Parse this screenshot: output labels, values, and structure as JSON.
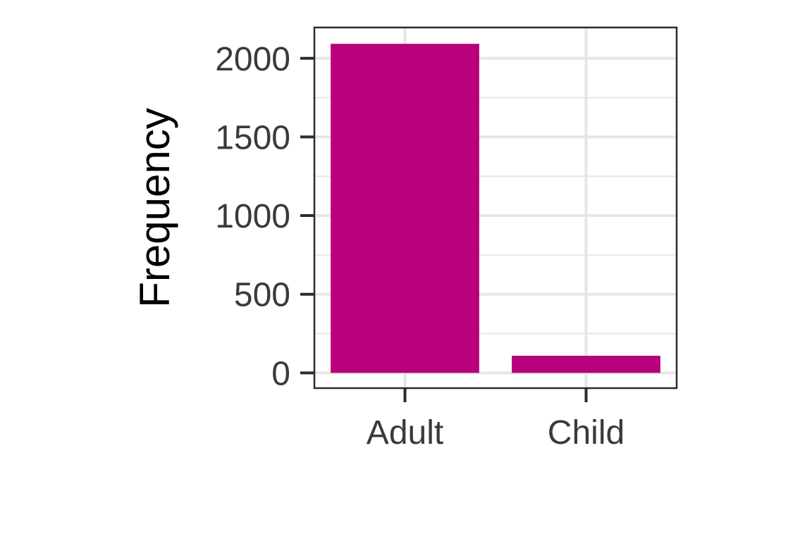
{
  "chart_data": {
    "type": "bar",
    "categories": [
      "Adult",
      "Child"
    ],
    "values": [
      2092,
      109
    ],
    "xlabel": "",
    "ylabel": "Frequency",
    "ylim": [
      -97,
      2196
    ],
    "yticks": [
      0,
      500,
      1000,
      1500,
      2000
    ],
    "ytick_labels": [
      "0",
      "500",
      "1000",
      "1500",
      "2000"
    ],
    "grid": true,
    "legend": "none",
    "colors": {
      "bar": "#b8007a",
      "grid": "#e6e6e6",
      "panel_border": "#2b2b2b",
      "tick_mark": "#2b2b2b",
      "tick_label": "#3a3a3a",
      "axis_title": "#000000"
    }
  }
}
